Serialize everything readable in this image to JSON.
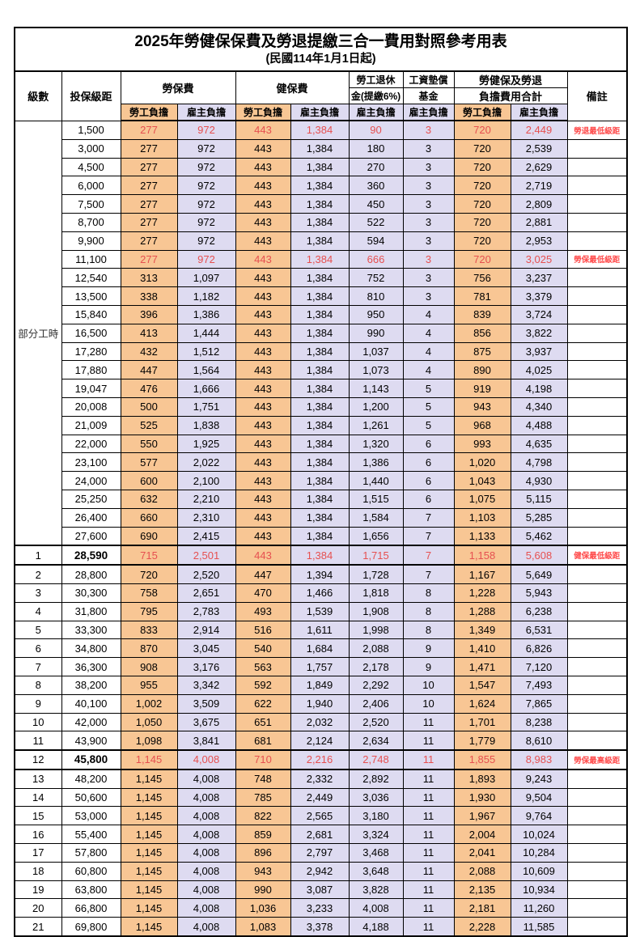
{
  "title": "2025年勞健保保費及勞退提繳三合一費用對照參考用表",
  "subtitle": "(民國114年1月1日起)",
  "header": {
    "level": "級數",
    "bracket": "投保級距",
    "labor_ins": "勞保費",
    "health_ins": "健保費",
    "pension_l1": "勞工退休",
    "pension_l2": "金(提繳6%)",
    "wage_fund_l1": "工資墊償",
    "wage_fund_l2": "基金",
    "total_l1": "勞健保及勞退",
    "total_l2": "負擔費用合計",
    "note": "備註",
    "employee": "勞工負擔",
    "employer": "雇主負擔"
  },
  "colors": {
    "employee_bg": "#F8C694",
    "employer_bg": "#DEDBF1",
    "value_red": "#E65050",
    "note_red": "#FF4A4A",
    "border": "#000000"
  },
  "part_time_label": "部分工時",
  "rows": [
    {
      "level": "",
      "bracket": "1,500",
      "values": [
        "277",
        "972",
        "443",
        "1,384",
        "90",
        "3",
        "720",
        "2,449"
      ],
      "note": "勞退最低級距",
      "red": true,
      "thick": false,
      "bold": false
    },
    {
      "level": "",
      "bracket": "3,000",
      "values": [
        "277",
        "972",
        "443",
        "1,384",
        "180",
        "3",
        "720",
        "2,539"
      ],
      "note": "",
      "red": false,
      "thick": false,
      "bold": false
    },
    {
      "level": "",
      "bracket": "4,500",
      "values": [
        "277",
        "972",
        "443",
        "1,384",
        "270",
        "3",
        "720",
        "2,629"
      ],
      "note": "",
      "red": false,
      "thick": false,
      "bold": false
    },
    {
      "level": "",
      "bracket": "6,000",
      "values": [
        "277",
        "972",
        "443",
        "1,384",
        "360",
        "3",
        "720",
        "2,719"
      ],
      "note": "",
      "red": false,
      "thick": false,
      "bold": false
    },
    {
      "level": "",
      "bracket": "7,500",
      "values": [
        "277",
        "972",
        "443",
        "1,384",
        "450",
        "3",
        "720",
        "2,809"
      ],
      "note": "",
      "red": false,
      "thick": false,
      "bold": false
    },
    {
      "level": "",
      "bracket": "8,700",
      "values": [
        "277",
        "972",
        "443",
        "1,384",
        "522",
        "3",
        "720",
        "2,881"
      ],
      "note": "",
      "red": false,
      "thick": false,
      "bold": false
    },
    {
      "level": "",
      "bracket": "9,900",
      "values": [
        "277",
        "972",
        "443",
        "1,384",
        "594",
        "3",
        "720",
        "2,953"
      ],
      "note": "",
      "red": false,
      "thick": false,
      "bold": false
    },
    {
      "level": "",
      "bracket": "11,100",
      "values": [
        "277",
        "972",
        "443",
        "1,384",
        "666",
        "3",
        "720",
        "3,025"
      ],
      "note": "勞保最低級距",
      "red": true,
      "thick": false,
      "bold": false
    },
    {
      "level": "",
      "bracket": "12,540",
      "values": [
        "313",
        "1,097",
        "443",
        "1,384",
        "752",
        "3",
        "756",
        "3,237"
      ],
      "note": "",
      "red": false,
      "thick": false,
      "bold": false
    },
    {
      "level": "",
      "bracket": "13,500",
      "values": [
        "338",
        "1,182",
        "443",
        "1,384",
        "810",
        "3",
        "781",
        "3,379"
      ],
      "note": "",
      "red": false,
      "thick": false,
      "bold": false
    },
    {
      "level": "",
      "bracket": "15,840",
      "values": [
        "396",
        "1,386",
        "443",
        "1,384",
        "950",
        "4",
        "839",
        "3,724"
      ],
      "note": "",
      "red": false,
      "thick": false,
      "bold": false
    },
    {
      "level": "",
      "bracket": "16,500",
      "values": [
        "413",
        "1,444",
        "443",
        "1,384",
        "990",
        "4",
        "856",
        "3,822"
      ],
      "note": "",
      "red": false,
      "thick": false,
      "bold": false
    },
    {
      "level": "",
      "bracket": "17,280",
      "values": [
        "432",
        "1,512",
        "443",
        "1,384",
        "1,037",
        "4",
        "875",
        "3,937"
      ],
      "note": "",
      "red": false,
      "thick": false,
      "bold": false
    },
    {
      "level": "",
      "bracket": "17,880",
      "values": [
        "447",
        "1,564",
        "443",
        "1,384",
        "1,073",
        "4",
        "890",
        "4,025"
      ],
      "note": "",
      "red": false,
      "thick": false,
      "bold": false
    },
    {
      "level": "",
      "bracket": "19,047",
      "values": [
        "476",
        "1,666",
        "443",
        "1,384",
        "1,143",
        "5",
        "919",
        "4,198"
      ],
      "note": "",
      "red": false,
      "thick": false,
      "bold": false
    },
    {
      "level": "",
      "bracket": "20,008",
      "values": [
        "500",
        "1,751",
        "443",
        "1,384",
        "1,200",
        "5",
        "943",
        "4,340"
      ],
      "note": "",
      "red": false,
      "thick": false,
      "bold": false
    },
    {
      "level": "",
      "bracket": "21,009",
      "values": [
        "525",
        "1,838",
        "443",
        "1,384",
        "1,261",
        "5",
        "968",
        "4,488"
      ],
      "note": "",
      "red": false,
      "thick": false,
      "bold": false
    },
    {
      "level": "",
      "bracket": "22,000",
      "values": [
        "550",
        "1,925",
        "443",
        "1,384",
        "1,320",
        "6",
        "993",
        "4,635"
      ],
      "note": "",
      "red": false,
      "thick": false,
      "bold": false
    },
    {
      "level": "",
      "bracket": "23,100",
      "values": [
        "577",
        "2,022",
        "443",
        "1,384",
        "1,386",
        "6",
        "1,020",
        "4,798"
      ],
      "note": "",
      "red": false,
      "thick": false,
      "bold": false
    },
    {
      "level": "",
      "bracket": "24,000",
      "values": [
        "600",
        "2,100",
        "443",
        "1,384",
        "1,440",
        "6",
        "1,043",
        "4,930"
      ],
      "note": "",
      "red": false,
      "thick": false,
      "bold": false
    },
    {
      "level": "",
      "bracket": "25,250",
      "values": [
        "632",
        "2,210",
        "443",
        "1,384",
        "1,515",
        "6",
        "1,075",
        "5,115"
      ],
      "note": "",
      "red": false,
      "thick": false,
      "bold": false
    },
    {
      "level": "",
      "bracket": "26,400",
      "values": [
        "660",
        "2,310",
        "443",
        "1,384",
        "1,584",
        "7",
        "1,103",
        "5,285"
      ],
      "note": "",
      "red": false,
      "thick": false,
      "bold": false
    },
    {
      "level": "",
      "bracket": "27,600",
      "values": [
        "690",
        "2,415",
        "443",
        "1,384",
        "1,656",
        "7",
        "1,133",
        "5,462"
      ],
      "note": "",
      "red": false,
      "thick": false,
      "bold": false
    },
    {
      "level": "1",
      "bracket": "28,590",
      "values": [
        "715",
        "2,501",
        "443",
        "1,384",
        "1,715",
        "7",
        "1,158",
        "5,608"
      ],
      "note": "健保最低級距",
      "red": true,
      "thick": true,
      "bold": true
    },
    {
      "level": "2",
      "bracket": "28,800",
      "values": [
        "720",
        "2,520",
        "447",
        "1,394",
        "1,728",
        "7",
        "1,167",
        "5,649"
      ],
      "note": "",
      "red": false,
      "thick": false,
      "bold": false
    },
    {
      "level": "3",
      "bracket": "30,300",
      "values": [
        "758",
        "2,651",
        "470",
        "1,466",
        "1,818",
        "8",
        "1,228",
        "5,943"
      ],
      "note": "",
      "red": false,
      "thick": false,
      "bold": false
    },
    {
      "level": "4",
      "bracket": "31,800",
      "values": [
        "795",
        "2,783",
        "493",
        "1,539",
        "1,908",
        "8",
        "1,288",
        "6,238"
      ],
      "note": "",
      "red": false,
      "thick": false,
      "bold": false
    },
    {
      "level": "5",
      "bracket": "33,300",
      "values": [
        "833",
        "2,914",
        "516",
        "1,611",
        "1,998",
        "8",
        "1,349",
        "6,531"
      ],
      "note": "",
      "red": false,
      "thick": false,
      "bold": false
    },
    {
      "level": "6",
      "bracket": "34,800",
      "values": [
        "870",
        "3,045",
        "540",
        "1,684",
        "2,088",
        "9",
        "1,410",
        "6,826"
      ],
      "note": "",
      "red": false,
      "thick": false,
      "bold": false
    },
    {
      "level": "7",
      "bracket": "36,300",
      "values": [
        "908",
        "3,176",
        "563",
        "1,757",
        "2,178",
        "9",
        "1,471",
        "7,120"
      ],
      "note": "",
      "red": false,
      "thick": false,
      "bold": false
    },
    {
      "level": "8",
      "bracket": "38,200",
      "values": [
        "955",
        "3,342",
        "592",
        "1,849",
        "2,292",
        "10",
        "1,547",
        "7,493"
      ],
      "note": "",
      "red": false,
      "thick": false,
      "bold": false
    },
    {
      "level": "9",
      "bracket": "40,100",
      "values": [
        "1,002",
        "3,509",
        "622",
        "1,940",
        "2,406",
        "10",
        "1,624",
        "7,865"
      ],
      "note": "",
      "red": false,
      "thick": false,
      "bold": false
    },
    {
      "level": "10",
      "bracket": "42,000",
      "values": [
        "1,050",
        "3,675",
        "651",
        "2,032",
        "2,520",
        "11",
        "1,701",
        "8,238"
      ],
      "note": "",
      "red": false,
      "thick": false,
      "bold": false
    },
    {
      "level": "11",
      "bracket": "43,900",
      "values": [
        "1,098",
        "3,841",
        "681",
        "2,124",
        "2,634",
        "11",
        "1,779",
        "8,610"
      ],
      "note": "",
      "red": false,
      "thick": false,
      "bold": false
    },
    {
      "level": "12",
      "bracket": "45,800",
      "values": [
        "1,145",
        "4,008",
        "710",
        "2,216",
        "2,748",
        "11",
        "1,855",
        "8,983"
      ],
      "note": "勞保最高級距",
      "red": true,
      "thick": true,
      "bold": true
    },
    {
      "level": "13",
      "bracket": "48,200",
      "values": [
        "1,145",
        "4,008",
        "748",
        "2,332",
        "2,892",
        "11",
        "1,893",
        "9,243"
      ],
      "note": "",
      "red": false,
      "thick": false,
      "bold": false
    },
    {
      "level": "14",
      "bracket": "50,600",
      "values": [
        "1,145",
        "4,008",
        "785",
        "2,449",
        "3,036",
        "11",
        "1,930",
        "9,504"
      ],
      "note": "",
      "red": false,
      "thick": false,
      "bold": false
    },
    {
      "level": "15",
      "bracket": "53,000",
      "values": [
        "1,145",
        "4,008",
        "822",
        "2,565",
        "3,180",
        "11",
        "1,967",
        "9,764"
      ],
      "note": "",
      "red": false,
      "thick": false,
      "bold": false
    },
    {
      "level": "16",
      "bracket": "55,400",
      "values": [
        "1,145",
        "4,008",
        "859",
        "2,681",
        "3,324",
        "11",
        "2,004",
        "10,024"
      ],
      "note": "",
      "red": false,
      "thick": false,
      "bold": false
    },
    {
      "level": "17",
      "bracket": "57,800",
      "values": [
        "1,145",
        "4,008",
        "896",
        "2,797",
        "3,468",
        "11",
        "2,041",
        "10,284"
      ],
      "note": "",
      "red": false,
      "thick": false,
      "bold": false
    },
    {
      "level": "18",
      "bracket": "60,800",
      "values": [
        "1,145",
        "4,008",
        "943",
        "2,942",
        "3,648",
        "11",
        "2,088",
        "10,609"
      ],
      "note": "",
      "red": false,
      "thick": false,
      "bold": false
    },
    {
      "level": "19",
      "bracket": "63,800",
      "values": [
        "1,145",
        "4,008",
        "990",
        "3,087",
        "3,828",
        "11",
        "2,135",
        "10,934"
      ],
      "note": "",
      "red": false,
      "thick": false,
      "bold": false
    },
    {
      "level": "20",
      "bracket": "66,800",
      "values": [
        "1,145",
        "4,008",
        "1,036",
        "3,233",
        "4,008",
        "11",
        "2,181",
        "11,260"
      ],
      "note": "",
      "red": false,
      "thick": false,
      "bold": false
    },
    {
      "level": "21",
      "bracket": "69,800",
      "values": [
        "1,145",
        "4,008",
        "1,083",
        "3,378",
        "4,188",
        "11",
        "2,228",
        "11,585"
      ],
      "note": "",
      "red": false,
      "thick": false,
      "bold": false
    }
  ]
}
